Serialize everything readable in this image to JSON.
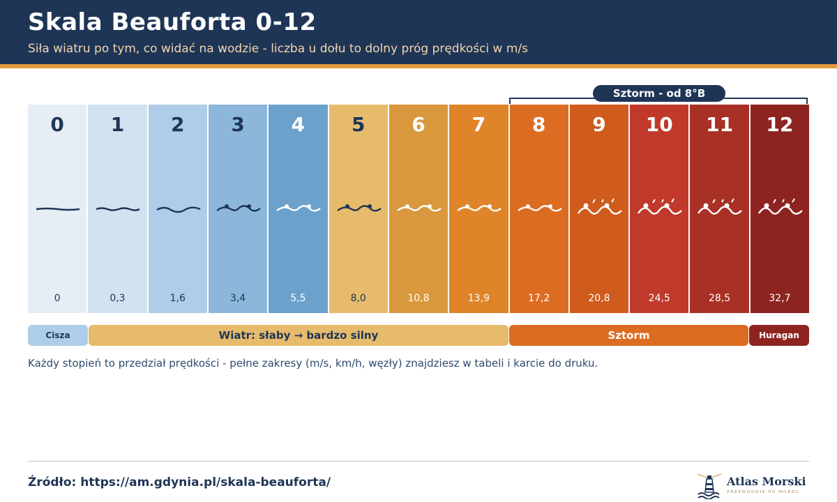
{
  "header": {
    "title": "Skala Beauforta 0-12",
    "subtitle": "Siła wiatru po tym, co widać na wodzie - liczba u dołu to dolny próg prędkości w m/s"
  },
  "storm_callout": "Sztorm - od 8°B",
  "scale": [
    {
      "degree": "0",
      "speed": "0",
      "bg": "#e7edf5",
      "fg": "#1f3556",
      "wave": "calm"
    },
    {
      "degree": "1",
      "speed": "0,3",
      "bg": "#d2e2f0",
      "fg": "#1f3556",
      "wave": "ripple"
    },
    {
      "degree": "2",
      "speed": "1,6",
      "bg": "#afcde8",
      "fg": "#1f3556",
      "wave": "wavelet"
    },
    {
      "degree": "3",
      "speed": "3,4",
      "bg": "#8cb7da",
      "fg": "#1f3556",
      "wave": "crests"
    },
    {
      "degree": "4",
      "speed": "5,5",
      "bg": "#6ba1cb",
      "fg": "#ffffff",
      "wave": "crests"
    },
    {
      "degree": "5",
      "speed": "8,0",
      "bg": "#e6bb6c",
      "fg": "#1f3556",
      "wave": "crests"
    },
    {
      "degree": "6",
      "speed": "10,8",
      "bg": "#d9983d",
      "fg": "#ffffff",
      "wave": "crests"
    },
    {
      "degree": "7",
      "speed": "13,9",
      "bg": "#df8429",
      "fg": "#ffffff",
      "wave": "crests"
    },
    {
      "degree": "8",
      "speed": "17,2",
      "bg": "#dc6c22",
      "fg": "#ffffff",
      "wave": "crests"
    },
    {
      "degree": "9",
      "speed": "20,8",
      "bg": "#cf5b1c",
      "fg": "#ffffff",
      "wave": "spray"
    },
    {
      "degree": "10",
      "speed": "24,5",
      "bg": "#c0392b",
      "fg": "#ffffff",
      "wave": "spray"
    },
    {
      "degree": "11",
      "speed": "28,5",
      "bg": "#a83024",
      "fg": "#ffffff",
      "wave": "spray"
    },
    {
      "degree": "12",
      "speed": "32,7",
      "bg": "#8d2420",
      "fg": "#ffffff",
      "wave": "spray"
    }
  ],
  "categories": {
    "calm": "Cisza",
    "wind": "Wiatr: słaby → bardzo silny",
    "storm": "Sztorm",
    "hurricane": "Huragan"
  },
  "note": "Każdy stopień to przedział prędkości - pełne zakresy (m/s, km/h, węzły) znajdziesz w tabeli i karcie do druku.",
  "footer": {
    "source": "Źródło: https://am.gdynia.pl/skala-beauforta/",
    "logo_name": "Atlas Morski",
    "logo_tagline": "PRZEWODNIK PO MORZU"
  }
}
